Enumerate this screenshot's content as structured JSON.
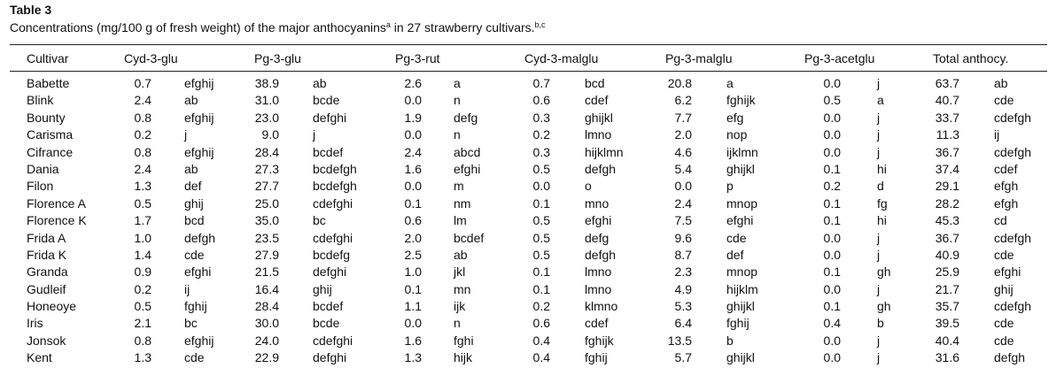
{
  "table": {
    "label": "Table 3",
    "caption": {
      "text": "Concentrations (mg/100 g of fresh weight) of the major anthocyanins",
      "sup_a": "a",
      "text2": " in 27 strawberry cultivars.",
      "sup_bc": "b,c"
    },
    "headers": [
      "Cultivar",
      "Cyd-3-glu",
      "Pg-3-glu",
      "Pg-3-rut",
      "Cyd-3-malglu",
      "Pg-3-malglu",
      "Pg-3-acetglu",
      "Total anthocy."
    ],
    "rows": [
      [
        "Babette",
        "0.7",
        "efghij",
        "38.9",
        "ab",
        "2.6",
        "a",
        "0.7",
        "bcd",
        "20.8",
        "a",
        "0.0",
        "j",
        "63.7",
        "ab"
      ],
      [
        "Blink",
        "2.4",
        "ab",
        "31.0",
        "bcde",
        "0.0",
        "n",
        "0.6",
        "cdef",
        "6.2",
        "fghijk",
        "0.5",
        "a",
        "40.7",
        "cde"
      ],
      [
        "Bounty",
        "0.8",
        "efghij",
        "23.0",
        "defghi",
        "1.9",
        "defg",
        "0.3",
        "ghijkl",
        "7.7",
        "efg",
        "0.0",
        "j",
        "33.7",
        "cdefgh"
      ],
      [
        "Carisma",
        "0.2",
        "j",
        "9.0",
        "j",
        "0.0",
        "n",
        "0.2",
        "lmno",
        "2.0",
        "nop",
        "0.0",
        "j",
        "11.3",
        "ij"
      ],
      [
        "Cifrance",
        "0.8",
        "efghij",
        "28.4",
        "bcdef",
        "2.4",
        "abcd",
        "0.3",
        "hijklmn",
        "4.6",
        "ijklmn",
        "0.0",
        "j",
        "36.7",
        "cdefgh"
      ],
      [
        "Dania",
        "2.4",
        "ab",
        "27.3",
        "bcdefgh",
        "1.6",
        "efghi",
        "0.5",
        "defgh",
        "5.4",
        "ghijkl",
        "0.1",
        "hi",
        "37.4",
        "cdef"
      ],
      [
        "Filon",
        "1.3",
        "def",
        "27.7",
        "bcdefgh",
        "0.0",
        "m",
        "0.0",
        "o",
        "0.0",
        "p",
        "0.2",
        "d",
        "29.1",
        "efgh"
      ],
      [
        "Florence A",
        "0.5",
        "ghij",
        "25.0",
        "cdefghi",
        "0.1",
        "nm",
        "0.1",
        "mno",
        "2.4",
        "mnop",
        "0.1",
        "fg",
        "28.2",
        "efgh"
      ],
      [
        "Florence K",
        "1.7",
        "bcd",
        "35.0",
        "bc",
        "0.6",
        "lm",
        "0.5",
        "efghi",
        "7.5",
        "efghi",
        "0.1",
        "hi",
        "45.3",
        "cd"
      ],
      [
        "Frida A",
        "1.0",
        "defgh",
        "23.5",
        "cdefghi",
        "2.0",
        "bcdef",
        "0.5",
        "defg",
        "9.6",
        "cde",
        "0.0",
        "j",
        "36.7",
        "cdefgh"
      ],
      [
        "Frida K",
        "1.4",
        "cde",
        "27.9",
        "bcdefg",
        "2.5",
        "ab",
        "0.5",
        "defgh",
        "8.7",
        "def",
        "0.0",
        "j",
        "40.9",
        "cde"
      ],
      [
        "Granda",
        "0.9",
        "efghi",
        "21.5",
        "defghi",
        "1.0",
        "jkl",
        "0.1",
        "lmno",
        "2.3",
        "mnop",
        "0.1",
        "gh",
        "25.9",
        "efghi"
      ],
      [
        "Gudleif",
        "0.2",
        "ij",
        "16.4",
        "ghij",
        "0.1",
        "mn",
        "0.1",
        "lmno",
        "4.9",
        "hijklm",
        "0.0",
        "j",
        "21.7",
        "ghij"
      ],
      [
        "Honeoye",
        "0.5",
        "fghij",
        "28.4",
        "bcdef",
        "1.1",
        "ijk",
        "0.2",
        "klmno",
        "5.3",
        "ghijkl",
        "0.1",
        "gh",
        "35.7",
        "cdefgh"
      ],
      [
        "Iris",
        "2.1",
        "bc",
        "30.0",
        "bcde",
        "0.0",
        "n",
        "0.6",
        "cdef",
        "6.4",
        "fghij",
        "0.4",
        "b",
        "39.5",
        "cde"
      ],
      [
        "Jonsok",
        "0.8",
        "efghij",
        "24.0",
        "cdefghi",
        "1.6",
        "fghi",
        "0.4",
        "fghijk",
        "13.5",
        "b",
        "0.0",
        "j",
        "40.4",
        "cde"
      ],
      [
        "Kent",
        "1.3",
        "cde",
        "22.9",
        "defghi",
        "1.3",
        "hijk",
        "0.4",
        "fghij",
        "5.7",
        "ghijkl",
        "0.0",
        "j",
        "31.6",
        "defgh"
      ]
    ]
  }
}
